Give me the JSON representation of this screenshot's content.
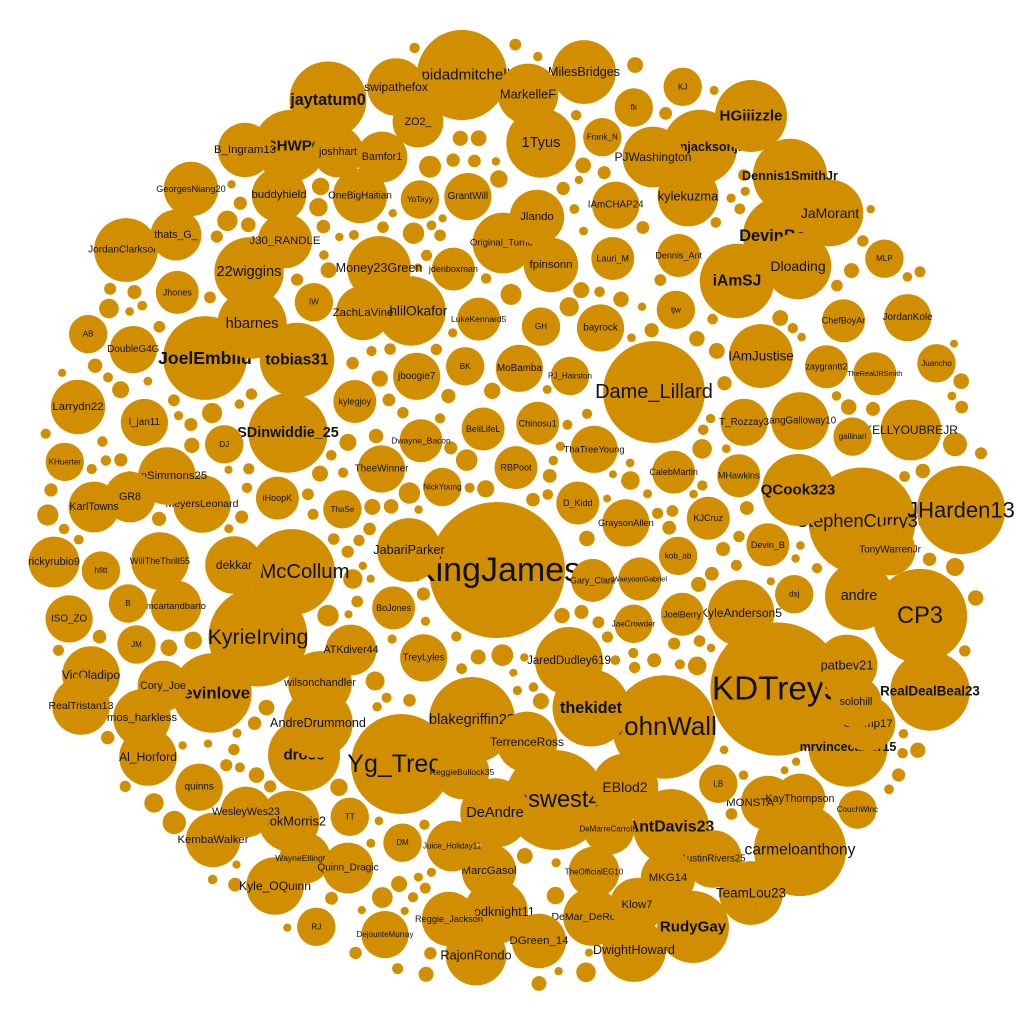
{
  "title": "",
  "bubble_color": "#D18F00",
  "text_color": "#111111",
  "bubbles": [
    {
      "handle": "KingJames",
      "weight": 100
    },
    {
      "handle": "KDTrey5",
      "weight": 96
    },
    {
      "handle": "StephenCurry30",
      "weight": 62
    },
    {
      "handle": "russwest44",
      "weight": 54
    },
    {
      "handle": "Dame_Lillard",
      "weight": 56
    },
    {
      "handle": "JohnWall",
      "weight": 58
    },
    {
      "handle": "KyrieIrving",
      "weight": 53
    },
    {
      "handle": "Yg_Trece",
      "weight": 54
    },
    {
      "handle": "CP3",
      "weight": 48
    },
    {
      "handle": "carmeloanthony",
      "weight": 46
    },
    {
      "handle": "JHarden13",
      "weight": 42
    },
    {
      "handle": "spidadmitchell",
      "weight": 44
    },
    {
      "handle": "blakegriffin23",
      "weight": 40
    },
    {
      "handle": "CJMcCollum",
      "weight": 40
    },
    {
      "handle": "JoelEmbiid",
      "weight": 38
    },
    {
      "handle": "SDinwiddie_25",
      "weight": 34
    },
    {
      "handle": "mrvincecarter15",
      "weight": 34
    },
    {
      "handle": "kevinlove",
      "weight": 34
    },
    {
      "handle": "RealDealBeal23",
      "weight": 34
    },
    {
      "handle": "DevinBook",
      "weight": 33
    },
    {
      "handle": "thekidet",
      "weight": 32
    },
    {
      "handle": "AntDavis23",
      "weight": 31
    },
    {
      "handle": "jarenjacksonjr",
      "weight": 30
    },
    {
      "handle": "Dennis1SmithJr",
      "weight": 30
    },
    {
      "handle": "jaytatum0",
      "weight": 32
    },
    {
      "handle": "tobias31",
      "weight": 30
    },
    {
      "handle": "QCook323",
      "weight": 28
    },
    {
      "handle": "iAmSJ",
      "weight": 30
    },
    {
      "handle": "FCHWPO",
      "weight": 28
    },
    {
      "handle": "HGiiizzle",
      "weight": 28
    },
    {
      "handle": "RudyGay",
      "weight": 28
    },
    {
      "handle": "drose",
      "weight": 28
    },
    {
      "handle": "AndreDrummond",
      "weight": 26
    },
    {
      "handle": "DeAndre",
      "weight": 26
    },
    {
      "handle": "hbarnes",
      "weight": 26
    },
    {
      "handle": "JahlilOkafor",
      "weight": 26
    },
    {
      "handle": "1Tyus",
      "weight": 26
    },
    {
      "handle": "andre",
      "weight": 25
    },
    {
      "handle": "22wiggins",
      "weight": 26
    },
    {
      "handle": "JaredDudley619",
      "weight": 25
    },
    {
      "handle": "wilsonchandler",
      "weight": 22
    },
    {
      "handle": "EBlod2",
      "weight": 24
    },
    {
      "handle": "Dloading",
      "weight": 24
    },
    {
      "handle": "JaMorant",
      "weight": 24
    },
    {
      "handle": "KyleAnderson5",
      "weight": 24
    },
    {
      "handle": "IAmJustise",
      "weight": 22
    },
    {
      "handle": "MilesBridges",
      "weight": 22
    },
    {
      "handle": "JabariParker",
      "weight": 22
    },
    {
      "handle": "Money23Green",
      "weight": 22
    },
    {
      "handle": "TeamLou23",
      "weight": 22
    },
    {
      "handle": "DwightHoward",
      "weight": 22
    },
    {
      "handle": "Goodknight11",
      "weight": 22
    },
    {
      "handle": "TerrenceRoss",
      "weight": 20
    },
    {
      "handle": "RajonRondo",
      "weight": 20
    },
    {
      "handle": "MookMorris2",
      "weight": 20
    },
    {
      "handle": "JordanClarksons",
      "weight": 22
    },
    {
      "handle": "KELLYOUBREJR",
      "weight": 20
    },
    {
      "handle": "kylekuzma",
      "weight": 20
    },
    {
      "handle": "Original_Turner",
      "weight": 20
    },
    {
      "handle": "PJWashington",
      "weight": 20
    },
    {
      "handle": "MarkelleF",
      "weight": 20
    },
    {
      "handle": "patbev21",
      "weight": 20
    },
    {
      "handle": "AustinRivers25",
      "weight": 18
    },
    {
      "handle": "swipathefox",
      "weight": 18
    },
    {
      "handle": "dekkar",
      "weight": 18
    },
    {
      "handle": "Kyle_OQuinn",
      "weight": 18
    },
    {
      "handle": "Al_Horford",
      "weight": 18
    },
    {
      "handle": "mos_harkless",
      "weight": 18
    },
    {
      "handle": "MeyersLeonard",
      "weight": 18
    },
    {
      "handle": "BenSimmons25",
      "weight": 18
    },
    {
      "handle": "WillTheThrill55",
      "weight": 18
    },
    {
      "handle": "Larrydn22",
      "weight": 16
    },
    {
      "handle": "VicOladipo",
      "weight": 18
    },
    {
      "handle": "RealTristan13",
      "weight": 18
    },
    {
      "handle": "LangGalloway10",
      "weight": 18
    },
    {
      "handle": "GTemp17",
      "weight": 16
    },
    {
      "handle": "MONSTATREZZ",
      "weight": 16
    },
    {
      "handle": "Klow7",
      "weight": 16
    },
    {
      "handle": "DeMar_DeRozan",
      "weight": 18
    },
    {
      "handle": "DGreen_14",
      "weight": 16
    },
    {
      "handle": "Reggie_Jackson",
      "weight": 16
    },
    {
      "handle": "ReggieBullock35",
      "weight": 16
    },
    {
      "handle": "ZachLaVine",
      "weight": 16
    },
    {
      "handle": "Jlando",
      "weight": 16
    },
    {
      "handle": "fpinsonn",
      "weight": 16
    },
    {
      "handle": "MarcGasol",
      "weight": 16
    },
    {
      "handle": "MKG14",
      "weight": 16
    },
    {
      "handle": "KembaWalker",
      "weight": 16
    },
    {
      "handle": "B_Ingram13",
      "weight": 16
    },
    {
      "handle": "GeorgesNiang20",
      "weight": 16
    },
    {
      "handle": "buddyhield",
      "weight": 16
    },
    {
      "handle": "OneBigHaitian",
      "weight": 16
    },
    {
      "handle": "joshhart",
      "weight": 14
    },
    {
      "handle": "Bamfor1",
      "weight": 14
    },
    {
      "handle": "ZO2_",
      "weight": 14
    },
    {
      "handle": "ATKdiver44",
      "weight": 14
    },
    {
      "handle": "TonyWarrenJr",
      "weight": 14
    },
    {
      "handle": "solohill",
      "weight": 14
    },
    {
      "handle": "KayThompson",
      "weight": 14
    },
    {
      "handle": "J30_RANDLE",
      "weight": 16
    },
    {
      "handle": "Juice_Holiday11",
      "weight": 14
    },
    {
      "handle": "TheOfficialEG10",
      "weight": 14
    },
    {
      "handle": "DeMarreCarroll1",
      "weight": 14
    },
    {
      "handle": "WesleyWes23",
      "weight": 14
    },
    {
      "handle": "WayneEllington",
      "weight": 14
    },
    {
      "handle": "Quinn_Dragic",
      "weight": 14
    },
    {
      "handle": "Cory_Joe",
      "weight": 14
    },
    {
      "handle": "thats_G_",
      "weight": 14
    },
    {
      "handle": "mcartandbarto",
      "weight": 14
    },
    {
      "handle": "GR8",
      "weight": 14
    },
    {
      "handle": "KarlTowns",
      "weight": 14
    },
    {
      "handle": "rickyrubio9",
      "weight": 14
    },
    {
      "handle": "jboogie7",
      "weight": 12
    },
    {
      "handle": "MoBamba",
      "weight": 12
    },
    {
      "handle": "TheeWinner",
      "weight": 12
    },
    {
      "handle": "DoubleG4G",
      "weight": 12
    },
    {
      "handle": "bayrock",
      "weight": 12
    },
    {
      "handle": "GrantWill",
      "weight": 12
    },
    {
      "handle": "BeliLifeL",
      "weight": 10
    },
    {
      "handle": "T_Rozzay3",
      "weight": 12
    },
    {
      "handle": "Dennis_Ant",
      "weight": 10
    },
    {
      "handle": "zaygrantt2",
      "weight": 10
    },
    {
      "handle": "TreyLyles",
      "weight": 12
    },
    {
      "handle": "iHoopK",
      "weight": 10
    },
    {
      "handle": "MHawkins",
      "weight": 10
    },
    {
      "handle": "Dwayne_Bacon",
      "weight": 10
    },
    {
      "handle": "JoelBerry",
      "weight": 10
    },
    {
      "handle": "BoJones",
      "weight": 10
    },
    {
      "handle": "KJCruz",
      "weight": 10
    },
    {
      "handle": "Lauri_M",
      "weight": 10
    },
    {
      "handle": "CalebMartin",
      "weight": 10
    },
    {
      "handle": "Gary_Clark",
      "weight": 10
    },
    {
      "handle": "LukeKennard5",
      "weight": 10
    },
    {
      "handle": "TheRealJRSmith",
      "weight": 10
    },
    {
      "handle": "GraysonAllen",
      "weight": 12
    },
    {
      "handle": "kylegjoy",
      "weight": 10
    },
    {
      "handle": "WaeyoonGabriel",
      "weight": 10
    },
    {
      "handle": "DejounteMurray",
      "weight": 12
    },
    {
      "handle": "ISO_ZO",
      "weight": 12
    },
    {
      "handle": "JordanKole",
      "weight": 12
    },
    {
      "handle": "IAmCHAP24",
      "weight": 12
    },
    {
      "handle": "l_jan11",
      "weight": 12
    },
    {
      "handle": "ThaTreeYoung",
      "weight": 12
    },
    {
      "handle": "quinns",
      "weight": 12
    },
    {
      "handle": "jdenboxman",
      "weight": 10
    },
    {
      "handle": "Chinosu1",
      "weight": 10
    },
    {
      "handle": "Jhones",
      "weight": 10
    },
    {
      "handle": "RBPoot",
      "weight": 10
    },
    {
      "handle": "D_Kidd",
      "weight": 10
    },
    {
      "handle": "Devin_B",
      "weight": 10
    },
    {
      "handle": "ChefBoyAr",
      "weight": 10
    },
    {
      "handle": "MLP",
      "weight": 8
    },
    {
      "handle": "Frank_N",
      "weight": 8
    },
    {
      "handle": "gallinari",
      "weight": 8
    },
    {
      "handle": "YoTayy",
      "weight": 8
    },
    {
      "handle": "PJ_Hairston",
      "weight": 8
    },
    {
      "handle": "kob_ab",
      "weight": 8
    },
    {
      "handle": "hfitt",
      "weight": 8
    },
    {
      "handle": "JaeCrowder",
      "weight": 8
    },
    {
      "handle": "DM",
      "weight": 8
    },
    {
      "handle": "ThaSe",
      "weight": 8
    },
    {
      "handle": "tjw",
      "weight": 8
    },
    {
      "handle": "NickYoung",
      "weight": 8
    },
    {
      "handle": "CouchWinc",
      "weight": 8
    },
    {
      "handle": "B",
      "weight": 8
    },
    {
      "handle": "IW",
      "weight": 8
    },
    {
      "handle": "RJ",
      "weight": 8
    },
    {
      "handle": "BK",
      "weight": 8
    },
    {
      "handle": "Juancho",
      "weight": 8
    },
    {
      "handle": "KHuerter",
      "weight": 8
    },
    {
      "handle": "GH",
      "weight": 8
    },
    {
      "handle": "LB",
      "weight": 8
    },
    {
      "handle": "dsj",
      "weight": 8
    },
    {
      "handle": "JM",
      "weight": 8
    },
    {
      "handle": "fk",
      "weight": 8
    },
    {
      "handle": "AB",
      "weight": 8
    },
    {
      "handle": "KJ",
      "weight": 8
    },
    {
      "handle": "TT",
      "weight": 8
    },
    {
      "handle": "DJ",
      "weight": 8
    }
  ],
  "filler_count": 330
}
